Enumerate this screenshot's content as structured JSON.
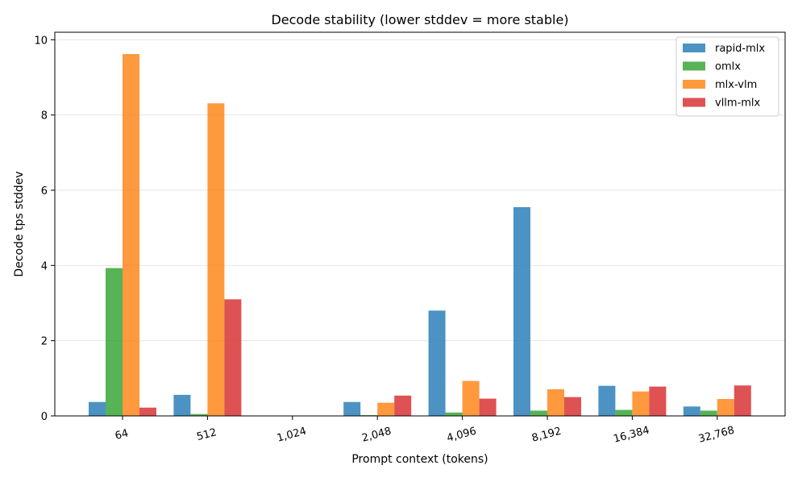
{
  "chart_data": {
    "type": "bar",
    "title": "Decode stability (lower stddev = more stable)",
    "xlabel": "Prompt context (tokens)",
    "ylabel": "Decode tps stddev",
    "ylim": [
      0,
      10.2
    ],
    "yticks": [
      0,
      2,
      4,
      6,
      8,
      10
    ],
    "yticklabels": [
      "0",
      "2",
      "4",
      "6",
      "8",
      "10"
    ],
    "categories": [
      "64",
      "512",
      "1,024",
      "2,048",
      "4,096",
      "8,192",
      "16,384",
      "32,768"
    ],
    "grid": "y",
    "legend_position": "top-right",
    "series": [
      {
        "name": "rapid-mlx",
        "color": "#1f77b4",
        "values": [
          0.37,
          0.56,
          0.0,
          0.37,
          2.8,
          5.55,
          0.8,
          0.25
        ]
      },
      {
        "name": "omlx",
        "color": "#2ca02c",
        "values": [
          3.93,
          0.05,
          0.0,
          0.02,
          0.09,
          0.14,
          0.16,
          0.14
        ]
      },
      {
        "name": "mlx-vlm",
        "color": "#ff7f0e",
        "values": [
          9.62,
          8.31,
          0.0,
          0.35,
          0.93,
          0.71,
          0.65,
          0.45
        ]
      },
      {
        "name": "vllm-mlx",
        "color": "#d62728",
        "values": [
          0.22,
          3.1,
          0.0,
          0.54,
          0.46,
          0.5,
          0.78,
          0.81
        ]
      }
    ]
  }
}
